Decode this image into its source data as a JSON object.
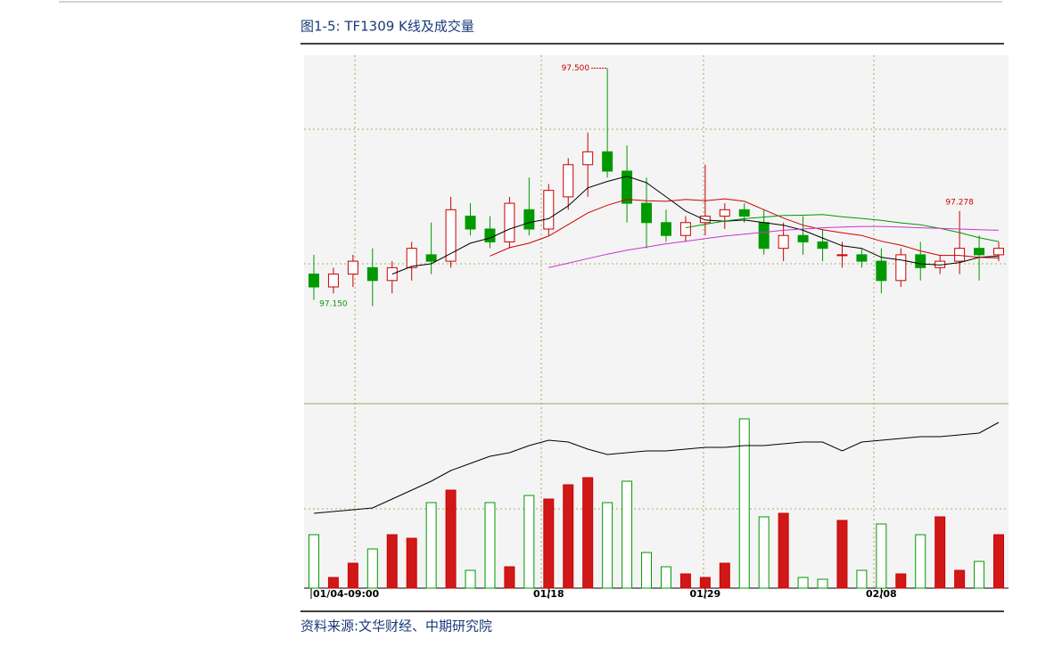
{
  "chart_data": {
    "type": "candlestick",
    "title": "图1-5: TF1309 K线及成交量",
    "source": "资料来源:文华财经、中期研究院",
    "categories": [
      "01/04-09:00",
      null,
      null,
      null,
      null,
      null,
      null,
      null,
      null,
      null,
      null,
      null,
      "01/18",
      null,
      null,
      null,
      null,
      null,
      null,
      null,
      "01/29",
      null,
      null,
      null,
      null,
      null,
      null,
      null,
      null,
      "02/08",
      null,
      null,
      null,
      null,
      null,
      null
    ],
    "open": [
      97.18,
      97.16,
      97.18,
      97.19,
      97.17,
      97.19,
      97.21,
      97.2,
      97.27,
      97.25,
      97.23,
      97.28,
      97.25,
      97.3,
      97.35,
      97.37,
      97.34,
      97.29,
      97.26,
      97.24,
      97.26,
      97.27,
      97.28,
      97.26,
      97.22,
      97.24,
      97.23,
      97.21,
      97.21,
      97.2,
      97.17,
      97.21,
      97.19,
      97.2,
      97.22,
      97.21
    ],
    "high": [
      97.21,
      97.19,
      97.21,
      97.22,
      97.2,
      97.23,
      97.26,
      97.3,
      97.29,
      97.27,
      97.3,
      97.33,
      97.32,
      97.36,
      97.4,
      97.5,
      97.38,
      97.33,
      97.28,
      97.27,
      97.35,
      97.29,
      97.29,
      97.28,
      97.26,
      97.27,
      97.25,
      97.23,
      97.22,
      97.22,
      97.22,
      97.23,
      97.21,
      97.278,
      97.24,
      97.23
    ],
    "low": [
      97.14,
      97.15,
      97.16,
      97.13,
      97.15,
      97.17,
      97.18,
      97.19,
      97.24,
      97.22,
      97.22,
      97.24,
      97.24,
      97.28,
      97.3,
      97.33,
      97.26,
      97.22,
      97.23,
      97.23,
      97.24,
      97.25,
      97.26,
      97.21,
      97.2,
      97.21,
      97.2,
      97.19,
      97.19,
      97.15,
      97.16,
      97.17,
      97.18,
      97.18,
      97.17,
      97.2
    ],
    "close": [
      97.16,
      97.18,
      97.2,
      97.17,
      97.19,
      97.22,
      97.2,
      97.28,
      97.25,
      97.23,
      97.29,
      97.25,
      97.31,
      97.35,
      97.37,
      97.34,
      97.29,
      97.26,
      97.24,
      97.26,
      97.27,
      97.28,
      97.27,
      97.22,
      97.24,
      97.23,
      97.22,
      97.21,
      97.2,
      97.17,
      97.21,
      97.19,
      97.2,
      97.22,
      97.21,
      97.22
    ],
    "up_color": "#cc0000",
    "down_color": "#009900",
    "ylim": [
      96.98,
      97.52
    ],
    "annotations": [
      {
        "value": 97.5,
        "label": "97.500",
        "color": "#cc0000"
      },
      {
        "value": 97.278,
        "label": "97.278",
        "color": "#cc0000"
      },
      {
        "value": 97.15,
        "label": "97.150",
        "color": "#009900"
      }
    ],
    "series": [
      {
        "color": "#000000",
        "values": [
          null,
          null,
          null,
          null,
          97.18,
          97.192,
          97.196,
          97.212,
          97.228,
          97.236,
          97.25,
          97.26,
          97.266,
          97.286,
          97.314,
          97.324,
          97.332,
          97.322,
          97.3,
          97.278,
          97.264,
          97.262,
          97.264,
          97.26,
          97.256,
          97.248,
          97.236,
          97.224,
          97.22,
          97.206,
          97.202,
          97.196,
          97.194,
          97.198,
          97.206,
          97.208
        ]
      },
      {
        "color": "#cc0000",
        "values": [
          null,
          null,
          null,
          null,
          null,
          null,
          null,
          null,
          null,
          97.208,
          97.221,
          97.228,
          97.239,
          97.257,
          97.275,
          97.287,
          97.296,
          97.294,
          97.293,
          97.296,
          97.294,
          97.297,
          97.293,
          97.28,
          97.267,
          97.256,
          97.249,
          97.244,
          97.24,
          97.231,
          97.225,
          97.216,
          97.209,
          97.209,
          97.206,
          97.205
        ]
      },
      {
        "color": "#009900",
        "values": [
          null,
          null,
          null,
          null,
          null,
          null,
          null,
          null,
          null,
          null,
          null,
          null,
          null,
          null,
          null,
          null,
          null,
          null,
          null,
          97.252,
          97.2575,
          97.2625,
          97.266,
          97.2685,
          97.271,
          97.2715,
          97.2725,
          97.269,
          97.2665,
          97.2635,
          97.2595,
          97.2565,
          97.251,
          97.2445,
          97.2365,
          97.2305
        ]
      },
      {
        "color": "#cc33cc",
        "values": [
          null,
          null,
          null,
          null,
          null,
          null,
          null,
          null,
          null,
          null,
          null,
          null,
          97.19,
          97.197,
          97.204,
          97.211,
          97.217,
          97.222,
          97.227,
          97.231,
          97.235,
          97.239,
          97.242,
          97.245,
          97.248,
          97.25,
          97.252,
          97.253,
          97.254,
          97.254,
          97.253,
          97.252,
          97.251,
          97.25,
          97.249,
          97.248
        ]
      }
    ],
    "volume": [
      30,
      6,
      14,
      22,
      30,
      28,
      48,
      55,
      10,
      48,
      12,
      52,
      50,
      58,
      62,
      48,
      60,
      20,
      12,
      8,
      6,
      14,
      95,
      40,
      42,
      6,
      5,
      38,
      10,
      36,
      8,
      30,
      40,
      10,
      15,
      30
    ],
    "volume_ylim": [
      0,
      100
    ],
    "open_interest": {
      "color": "#000000",
      "values": [
        42,
        43,
        44,
        45,
        50,
        55,
        60,
        66,
        70,
        74,
        76,
        80,
        83,
        82,
        78,
        75,
        76,
        77,
        77,
        78,
        79,
        79,
        80,
        80,
        81,
        82,
        82,
        77,
        82,
        83,
        84,
        85,
        85,
        86,
        87,
        93
      ]
    }
  }
}
